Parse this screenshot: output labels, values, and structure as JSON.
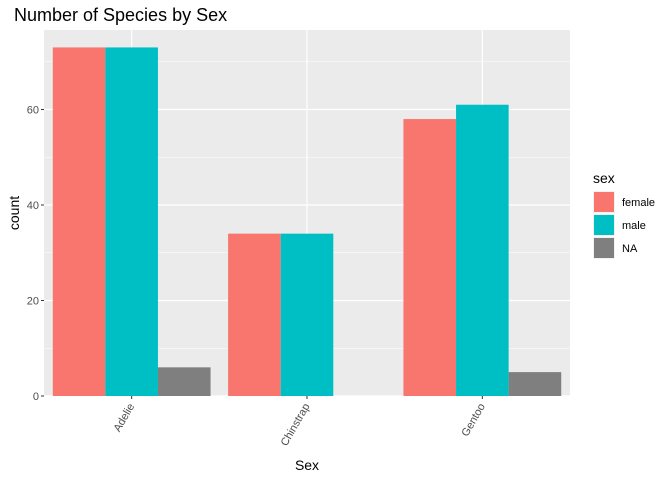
{
  "chart_data": {
    "type": "bar",
    "title": "Number of Species by Sex",
    "xlabel": "Sex",
    "ylabel": "count",
    "categories": [
      "Adelie",
      "Chinstrap",
      "Gentoo"
    ],
    "series": [
      {
        "name": "female",
        "color": "#F8766D",
        "values": [
          73,
          34,
          58
        ]
      },
      {
        "name": "male",
        "color": "#00BFC4",
        "values": [
          73,
          34,
          61
        ]
      },
      {
        "name": "NA",
        "color": "#7F7F7F",
        "values": [
          6,
          null,
          5
        ]
      }
    ],
    "ylim": [
      0,
      76.65
    ],
    "yticks": [
      0,
      20,
      40,
      60
    ],
    "yticks_labels": [
      "0",
      "20",
      "40",
      "60"
    ],
    "legend": {
      "title": "sex",
      "position": "right"
    },
    "grid": true,
    "panel_background": "#EBEBEB"
  }
}
